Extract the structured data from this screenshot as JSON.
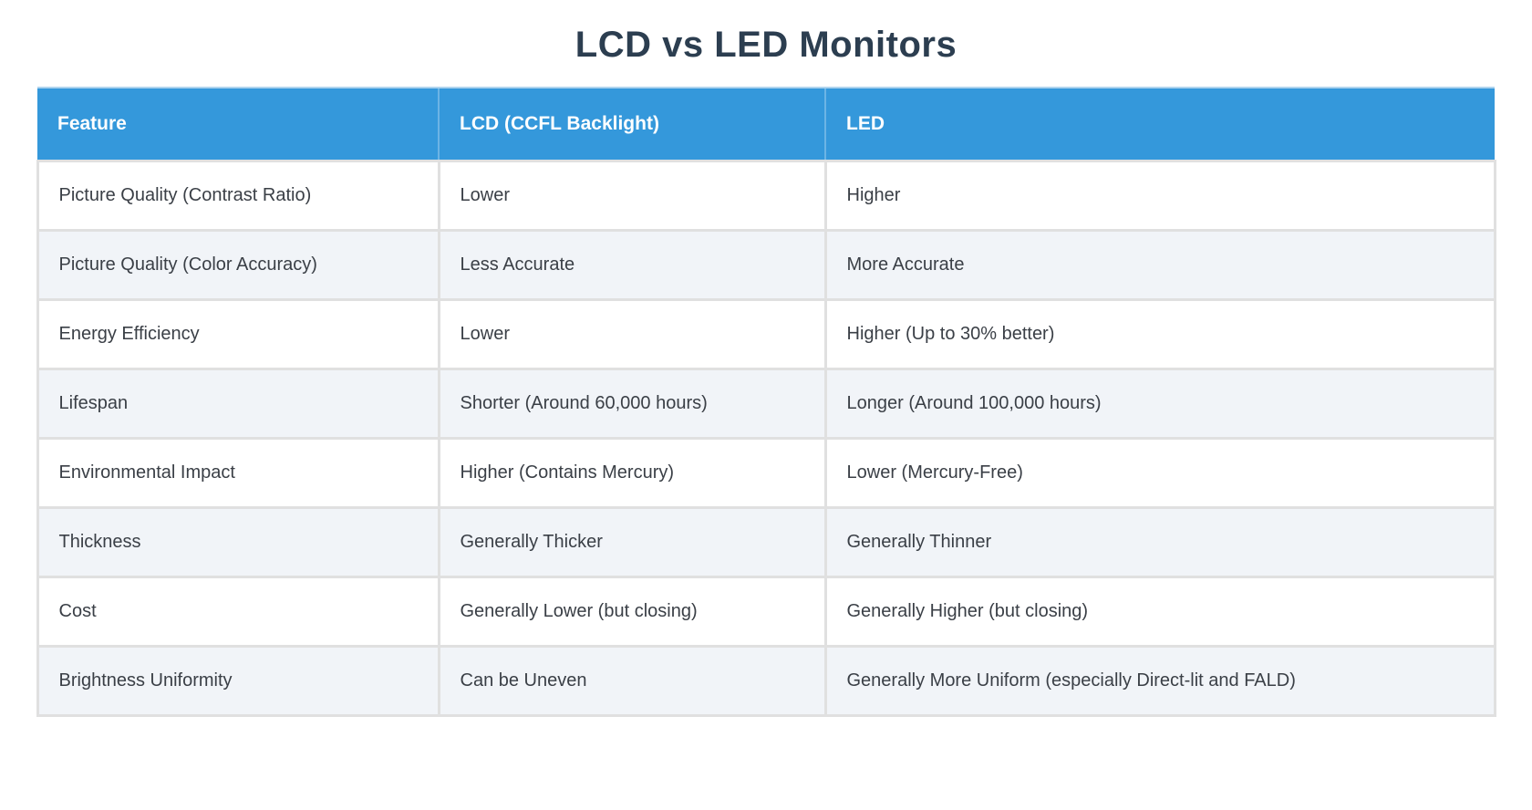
{
  "page": {
    "title": "LCD vs LED Monitors"
  },
  "colors": {
    "header_bg": "#3498db",
    "header_text": "#ffffff",
    "title_text": "#2c3e50",
    "row_bg": "#ffffff",
    "row_alt_bg": "#f1f4f8",
    "border": "#e0e0e0",
    "cell_text": "#3a3f46"
  },
  "chart_data": {
    "type": "table",
    "title": "LCD vs LED Monitors",
    "columns": [
      "Feature",
      "LCD (CCFL Backlight)",
      "LED"
    ],
    "rows": [
      [
        "Picture Quality (Contrast Ratio)",
        "Lower",
        "Higher"
      ],
      [
        "Picture Quality (Color Accuracy)",
        "Less Accurate",
        "More Accurate"
      ],
      [
        "Energy Efficiency",
        "Lower",
        "Higher (Up to 30% better)"
      ],
      [
        "Lifespan",
        "Shorter (Around 60,000 hours)",
        "Longer (Around 100,000 hours)"
      ],
      [
        "Environmental Impact",
        "Higher (Contains Mercury)",
        "Lower (Mercury-Free)"
      ],
      [
        "Thickness",
        "Generally Thicker",
        "Generally Thinner"
      ],
      [
        "Cost",
        "Generally Lower (but closing)",
        "Generally Higher (but closing)"
      ],
      [
        "Brightness Uniformity",
        "Can be Uneven",
        "Generally More Uniform (especially Direct-lit and FALD)"
      ]
    ]
  }
}
